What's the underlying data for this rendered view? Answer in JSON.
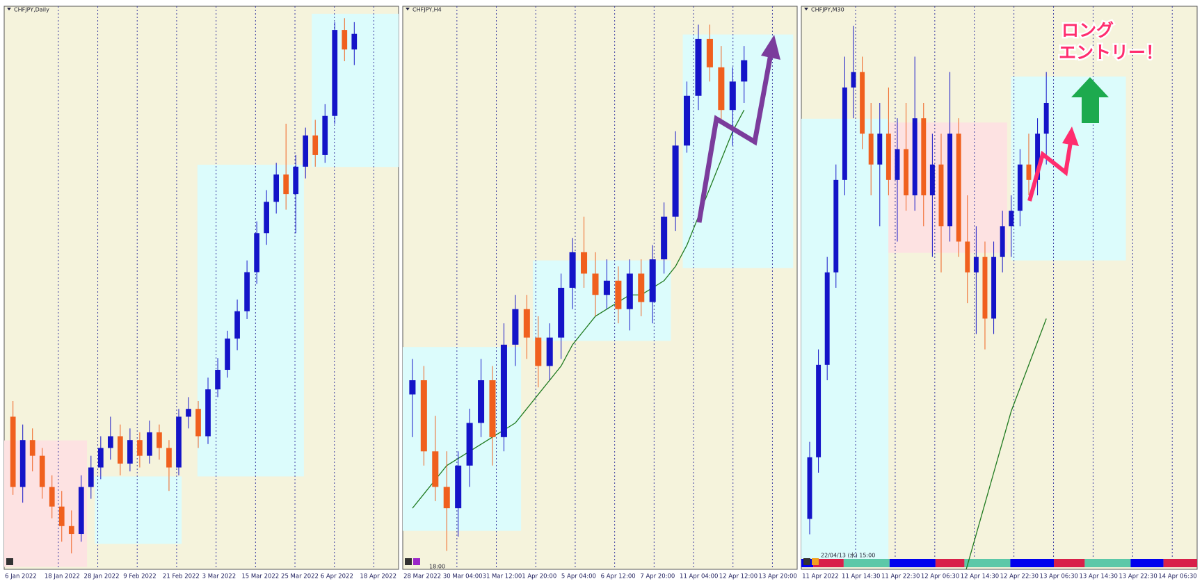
{
  "panels": [
    {
      "title": "CHFJPY,Daily",
      "x_labels": [
        "6 Jan 2022",
        "18 Jan 2022",
        "28 Jan 2022",
        "9 Feb 2022",
        "21 Feb 2022",
        "3 Mar 2022",
        "15 Mar 2022",
        "25 Mar 2022",
        "6 Apr 2022",
        "18 Apr 2022"
      ],
      "ylim": [
        123,
        137.2
      ],
      "candles": [
        [
          126.8,
          127.2,
          124.8,
          125.0
        ],
        [
          125.0,
          126.6,
          124.6,
          126.2
        ],
        [
          126.2,
          126.5,
          125.4,
          125.8
        ],
        [
          125.8,
          126.0,
          124.7,
          125.0
        ],
        [
          125.0,
          125.3,
          124.2,
          124.5
        ],
        [
          124.5,
          124.9,
          123.6,
          124.0
        ],
        [
          124.0,
          124.4,
          123.3,
          123.8
        ],
        [
          123.8,
          125.3,
          123.6,
          125.0
        ],
        [
          125.0,
          125.8,
          124.7,
          125.5
        ],
        [
          125.5,
          126.3,
          125.2,
          126.0
        ],
        [
          126.0,
          126.8,
          125.7,
          126.3
        ],
        [
          126.3,
          126.6,
          125.3,
          125.6
        ],
        [
          125.6,
          126.5,
          125.4,
          126.2
        ],
        [
          126.2,
          126.4,
          125.5,
          125.8
        ],
        [
          125.8,
          126.7,
          125.6,
          126.4
        ],
        [
          126.4,
          126.6,
          125.7,
          126.0
        ],
        [
          126.0,
          126.2,
          124.9,
          125.5
        ],
        [
          125.5,
          127.0,
          125.3,
          126.8
        ],
        [
          126.8,
          127.3,
          126.5,
          127.0
        ],
        [
          127.0,
          127.2,
          126.0,
          126.3
        ],
        [
          126.3,
          127.8,
          126.1,
          127.5
        ],
        [
          127.5,
          128.3,
          127.3,
          128.0
        ],
        [
          128.0,
          129.0,
          127.8,
          128.8
        ],
        [
          128.8,
          129.8,
          128.5,
          129.5
        ],
        [
          129.5,
          130.8,
          129.3,
          130.5
        ],
        [
          130.5,
          131.8,
          130.2,
          131.5
        ],
        [
          131.5,
          132.6,
          131.2,
          132.3
        ],
        [
          132.3,
          133.3,
          132.0,
          133.0
        ],
        [
          133.0,
          134.3,
          132.1,
          132.5
        ],
        [
          132.5,
          133.5,
          131.5,
          133.2
        ],
        [
          133.2,
          134.2,
          132.9,
          134.0
        ],
        [
          134.0,
          134.4,
          133.2,
          133.5
        ],
        [
          133.5,
          134.8,
          133.3,
          134.5
        ],
        [
          134.5,
          136.9,
          134.3,
          136.7
        ],
        [
          136.7,
          137.0,
          135.9,
          136.2
        ],
        [
          136.2,
          136.9,
          135.8,
          136.6
        ]
      ]
    },
    {
      "title": "CHFJPY,H4",
      "time_label": "18:00",
      "x_labels": [
        "28 Mar 2022",
        "30 Mar 04:00",
        "31 Mar 12:00",
        "1 Apr 20:00",
        "5 Apr 04:00",
        "6 Apr 12:00",
        "7 Apr 20:00",
        "11 Apr 04:00",
        "12 Apr 12:00",
        "13 Apr 20:00"
      ],
      "ylim": [
        129.4,
        137.2
      ],
      "candles": [
        [
          131.8,
          132.3,
          131.2,
          132.0
        ],
        [
          132.0,
          132.2,
          130.8,
          131.0
        ],
        [
          131.0,
          131.5,
          130.3,
          130.5
        ],
        [
          130.5,
          131.0,
          129.6,
          130.2
        ],
        [
          130.2,
          131.0,
          129.8,
          130.8
        ],
        [
          130.8,
          131.6,
          130.5,
          131.4
        ],
        [
          131.4,
          132.3,
          131.2,
          132.0
        ],
        [
          132.0,
          132.2,
          130.8,
          131.2
        ],
        [
          131.2,
          132.8,
          131.0,
          132.5
        ],
        [
          132.5,
          133.2,
          132.2,
          133.0
        ],
        [
          133.0,
          133.2,
          132.3,
          132.6
        ],
        [
          132.6,
          132.9,
          131.9,
          132.2
        ],
        [
          132.2,
          132.8,
          132.0,
          132.6
        ],
        [
          132.6,
          133.5,
          132.3,
          133.3
        ],
        [
          133.3,
          134.0,
          133.0,
          133.8
        ],
        [
          133.8,
          134.3,
          133.3,
          133.5
        ],
        [
          133.5,
          133.8,
          132.9,
          133.2
        ],
        [
          133.2,
          133.7,
          133.0,
          133.4
        ],
        [
          133.4,
          133.6,
          132.8,
          133.0
        ],
        [
          133.0,
          133.7,
          132.7,
          133.5
        ],
        [
          133.5,
          133.7,
          132.9,
          133.1
        ],
        [
          133.1,
          133.9,
          132.8,
          133.7
        ],
        [
          133.7,
          134.5,
          133.5,
          134.3
        ],
        [
          134.3,
          135.5,
          134.1,
          135.3
        ],
        [
          135.3,
          136.2,
          135.2,
          136.0
        ],
        [
          136.0,
          137.0,
          135.8,
          136.8
        ],
        [
          136.8,
          137.0,
          136.2,
          136.4
        ],
        [
          136.4,
          136.7,
          135.6,
          135.8
        ],
        [
          135.8,
          136.4,
          135.3,
          136.2
        ],
        [
          136.2,
          136.7,
          135.9,
          136.5
        ]
      ],
      "ma": [
        130.2,
        130.4,
        130.6,
        130.8,
        130.9,
        131.0,
        131.1,
        131.2,
        131.3,
        131.4,
        131.6,
        131.8,
        132.0,
        132.2,
        132.5,
        132.7,
        132.9,
        133.0,
        133.1,
        133.2,
        133.2,
        133.3,
        133.4,
        133.6,
        133.9,
        134.3,
        134.7,
        135.1,
        135.5,
        135.8
      ]
    },
    {
      "title": "CHFJPY,M30",
      "time_label": "22/04/13 (水) 15:00",
      "x_labels": [
        "11 Apr 2022",
        "11 Apr 14:30",
        "11 Apr 22:30",
        "12 Apr 06:30",
        "12 Apr 14:30",
        "12 Apr 22:30",
        "13 Apr 06:30",
        "13 Apr 14:30",
        "13 Apr 22:30",
        "14 Apr 06:30"
      ],
      "ylim": [
        133.4,
        137.0
      ],
      "candles": [
        [
          133.7,
          134.2,
          133.6,
          134.1
        ],
        [
          134.1,
          134.8,
          134.0,
          134.7
        ],
        [
          134.7,
          135.4,
          134.6,
          135.3
        ],
        [
          135.3,
          136.0,
          135.2,
          135.9
        ],
        [
          135.9,
          136.7,
          135.8,
          136.5
        ],
        [
          136.5,
          136.9,
          136.3,
          136.6
        ],
        [
          136.6,
          136.7,
          136.1,
          136.2
        ],
        [
          136.2,
          136.4,
          135.8,
          136.0
        ],
        [
          136.0,
          136.4,
          135.6,
          136.2
        ],
        [
          136.2,
          136.5,
          135.8,
          135.9
        ],
        [
          135.9,
          136.3,
          135.5,
          136.1
        ],
        [
          136.1,
          136.4,
          135.7,
          135.8
        ],
        [
          135.8,
          136.7,
          135.7,
          136.3
        ],
        [
          136.3,
          136.4,
          135.6,
          135.8
        ],
        [
          135.8,
          136.2,
          135.4,
          136.0
        ],
        [
          136.0,
          136.2,
          135.3,
          135.6
        ],
        [
          135.6,
          136.6,
          135.5,
          136.2
        ],
        [
          136.2,
          136.3,
          135.4,
          135.5
        ],
        [
          135.5,
          135.8,
          135.1,
          135.3
        ],
        [
          135.3,
          135.6,
          134.9,
          135.4
        ],
        [
          135.4,
          135.5,
          134.8,
          135.0
        ],
        [
          135.0,
          135.5,
          134.9,
          135.4
        ],
        [
          135.4,
          135.7,
          135.3,
          135.6
        ],
        [
          135.6,
          135.8,
          135.4,
          135.7
        ],
        [
          135.7,
          136.1,
          135.6,
          136.0
        ],
        [
          136.0,
          136.2,
          135.8,
          135.9
        ],
        [
          135.9,
          136.3,
          135.8,
          136.2
        ],
        [
          136.2,
          136.6,
          136.0,
          136.4
        ]
      ],
      "ma": [
        null,
        null,
        null,
        null,
        null,
        null,
        null,
        null,
        null,
        null,
        null,
        null,
        null,
        null,
        null,
        null,
        null,
        133.2,
        133.4,
        133.6,
        133.8,
        134.0,
        134.2,
        134.4,
        134.55,
        134.7,
        134.85,
        135.0
      ]
    }
  ],
  "annotation": [
    "ロング",
    "エントリー！"
  ],
  "bull_color": "#1414c8",
  "bear_color": "#f0601e",
  "ma_color": "#1f7a1f"
}
